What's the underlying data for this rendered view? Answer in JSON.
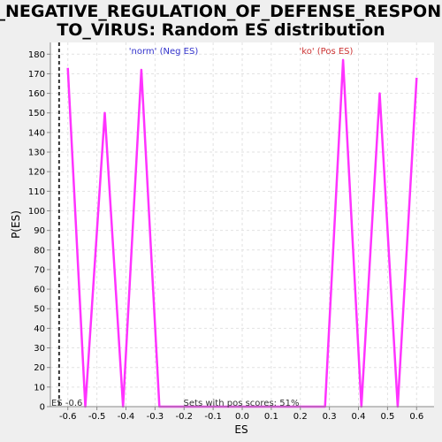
{
  "chart_data": {
    "type": "line",
    "title_line1": "GO_NEGATIVE_REGULATION_OF_DEFENSE_RESPONSE_",
    "title_line2": "TO_VIRUS: Random ES distribution",
    "xlabel": "ES",
    "ylabel": "P(ES)",
    "xlim": [
      -0.66,
      0.66
    ],
    "ylim": [
      0,
      186
    ],
    "x_ticks": [
      -0.6,
      -0.5,
      -0.4,
      -0.3,
      -0.2,
      -0.1,
      0.0,
      0.1,
      0.2,
      0.3,
      0.4,
      0.5,
      0.6
    ],
    "x_tick_labels": [
      "-0.6",
      "-0.5",
      "-0.4",
      "-0.3",
      "-0.2",
      "-0.1",
      "0.0",
      "0.1",
      "0.2",
      "0.3",
      "0.4",
      "0.5",
      "0.6"
    ],
    "y_ticks": [
      0,
      10,
      20,
      30,
      40,
      50,
      60,
      70,
      80,
      90,
      100,
      110,
      120,
      130,
      140,
      150,
      160,
      170,
      180
    ],
    "grid": true,
    "series": [
      {
        "color": "#ff33ff",
        "x": [
          -0.6,
          -0.54,
          -0.473,
          -0.41,
          -0.347,
          -0.285,
          0.285,
          0.347,
          0.41,
          0.473,
          0.535,
          0.6
        ],
        "y": [
          173,
          0,
          150,
          0,
          172,
          0,
          0,
          177,
          0,
          160,
          0,
          168
        ]
      }
    ],
    "es_marker": {
      "x": -0.63,
      "label": "ES -0.6"
    },
    "annotations": {
      "neg_label": "'norm' (Neg ES)",
      "neg_color": "#3333cc",
      "pos_label": "'ko' (Pos ES)",
      "pos_color": "#cc3333",
      "pos_scores_text": "Sets with pos scores: 51%"
    }
  }
}
